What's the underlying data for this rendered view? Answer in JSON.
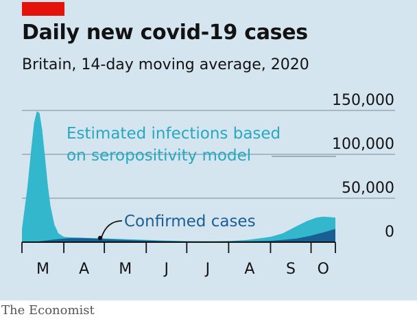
{
  "header": {
    "title": "Daily new covid-19 cases",
    "subtitle": "Britain, 14-day moving average, 2020"
  },
  "footer": {
    "source": "The Economist"
  },
  "colors": {
    "panel": "#d5e5f0",
    "estimated": "#32b7cc",
    "confirmed": "#1a5f94",
    "annotation_estimated": "#26a9be",
    "annotation_confirmed": "#1a5f94",
    "grid": "#8a9aa6",
    "axis": "#121212",
    "brand": "#e3120b"
  },
  "chart_data": {
    "type": "area",
    "title": "Daily new covid-19 cases",
    "subtitle": "Britain, 14-day moving average, 2020",
    "xlabel": "",
    "ylabel": "",
    "x_ticks": [
      "M",
      "A",
      "M",
      "J",
      "J",
      "A",
      "S",
      "O"
    ],
    "y_ticks": [
      0,
      50000,
      100000,
      150000
    ],
    "y_tick_labels": [
      "0",
      "50,000",
      "100,000",
      "150,000"
    ],
    "ylim": [
      0,
      150000
    ],
    "xlim": [
      "2020-03-01",
      "2020-10-19"
    ],
    "grid": true,
    "annotations": [
      "Estimated infections based on seropositivity model",
      "Confirmed cases"
    ],
    "series": [
      {
        "key": "estimated",
        "x": [
          "2020-03-01",
          "2020-03-05",
          "2020-03-08",
          "2020-03-10",
          "2020-03-12",
          "2020-03-14",
          "2020-03-16",
          "2020-03-18",
          "2020-03-20",
          "2020-03-22",
          "2020-03-25",
          "2020-03-28",
          "2020-04-01",
          "2020-04-05",
          "2020-04-10",
          "2020-04-20",
          "2020-05-01",
          "2020-05-15",
          "2020-06-01",
          "2020-06-15",
          "2020-07-01",
          "2020-07-15",
          "2020-08-01",
          "2020-08-15",
          "2020-09-01",
          "2020-09-10",
          "2020-09-20",
          "2020-09-28",
          "2020-10-05",
          "2020-10-10",
          "2020-10-15",
          "2020-10-19"
        ],
        "values": [
          15000,
          62000,
          108000,
          136000,
          149000,
          147000,
          128000,
          98000,
          67000,
          42000,
          20000,
          10000,
          6000,
          5500,
          5200,
          4800,
          4200,
          3500,
          2500,
          1800,
          1200,
          1000,
          1200,
          2500,
          6000,
          10000,
          18000,
          24000,
          28000,
          29000,
          28500,
          28000
        ]
      },
      {
        "key": "confirmed",
        "x": [
          "2020-03-01",
          "2020-03-10",
          "2020-03-20",
          "2020-03-28",
          "2020-04-05",
          "2020-04-15",
          "2020-04-25",
          "2020-05-05",
          "2020-05-15",
          "2020-06-01",
          "2020-06-15",
          "2020-07-01",
          "2020-07-15",
          "2020-08-01",
          "2020-08-15",
          "2020-09-01",
          "2020-09-10",
          "2020-09-20",
          "2020-09-30",
          "2020-10-10",
          "2020-10-19"
        ],
        "values": [
          0,
          200,
          2000,
          3500,
          4500,
          4600,
          4000,
          3200,
          2600,
          1800,
          1200,
          800,
          600,
          900,
          1000,
          1500,
          2500,
          4000,
          7000,
          11000,
          15000
        ]
      }
    ]
  }
}
